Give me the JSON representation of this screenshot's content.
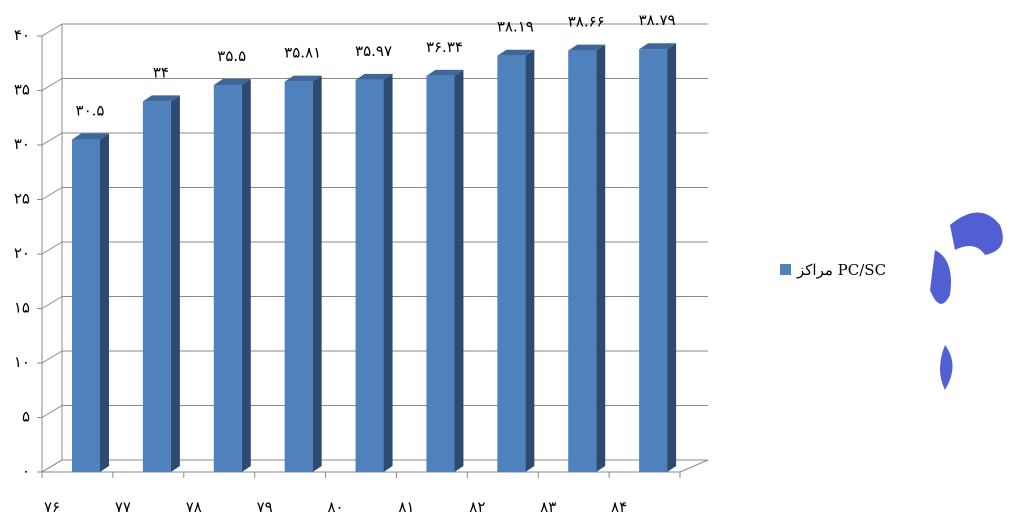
{
  "chart_data": {
    "type": "bar3d",
    "categories": [
      "۷۶",
      "۷۷",
      "۷۸",
      "۷۹",
      "۸۰",
      "۸۱",
      "۸۲",
      "۸۳",
      "۸۴"
    ],
    "series": [
      {
        "name": "مراکز PC/SC",
        "color": "#4f81bd",
        "values": [
          30.5,
          34,
          35.5,
          35.81,
          35.97,
          36.34,
          38.19,
          38.66,
          38.79
        ],
        "value_labels": [
          "۳۰.۵",
          "۳۴",
          "۳۵.۵",
          "۳۵.۸۱",
          "۳۵.۹۷",
          "۳۶.۳۴",
          "۳۸.۱۹",
          "۳۸.۶۶",
          "۳۸.۷۹"
        ]
      }
    ],
    "ylim": [
      0,
      40
    ],
    "yticks": [
      {
        "value": 0,
        "label": "۰"
      },
      {
        "value": 5,
        "label": "۵"
      },
      {
        "value": 10,
        "label": "۱۰"
      },
      {
        "value": 15,
        "label": "۱۵"
      },
      {
        "value": 20,
        "label": "۲۰"
      },
      {
        "value": 25,
        "label": "۲۵"
      },
      {
        "value": 30,
        "label": "۳۰"
      },
      {
        "value": 35,
        "label": "۳۵"
      },
      {
        "value": 40,
        "label": "۴۰"
      }
    ],
    "grid": true,
    "legend": "right"
  }
}
